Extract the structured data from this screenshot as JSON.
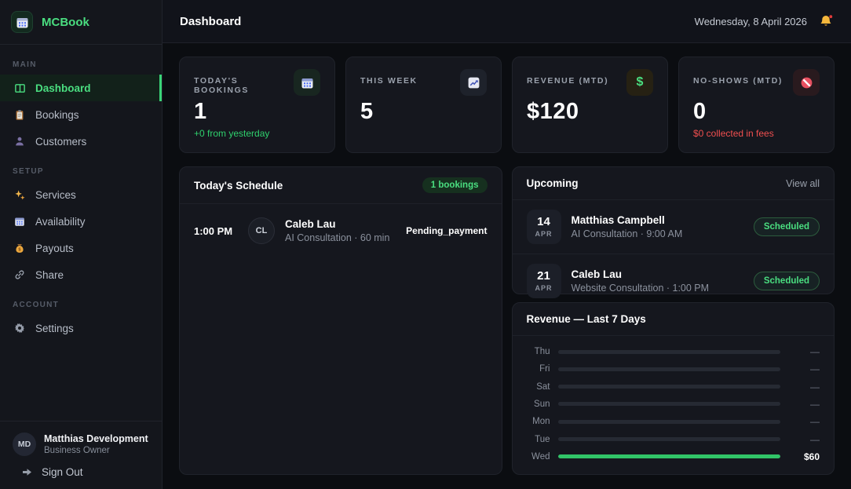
{
  "colors": {
    "accent_green": "#4ade80",
    "bar_green": "#31c468",
    "negative_red": "#f04f4f"
  },
  "app": {
    "name": "MCBook"
  },
  "header": {
    "title": "Dashboard",
    "date": "Wednesday, 8 April 2026",
    "notification_icon": "bell-icon"
  },
  "sidebar": {
    "sections": [
      {
        "label": "MAIN",
        "items": [
          {
            "label": "Dashboard",
            "icon": "dashboard-icon",
            "active": true
          },
          {
            "label": "Bookings",
            "icon": "clipboard-icon",
            "active": false
          },
          {
            "label": "Customers",
            "icon": "person-icon",
            "active": false
          }
        ]
      },
      {
        "label": "SETUP",
        "items": [
          {
            "label": "Services",
            "icon": "sparkles-icon",
            "active": false
          },
          {
            "label": "Availability",
            "icon": "calendar-icon",
            "active": false
          },
          {
            "label": "Payouts",
            "icon": "money-bag-icon",
            "active": false
          },
          {
            "label": "Share",
            "icon": "link-icon",
            "active": false
          }
        ]
      },
      {
        "label": "ACCOUNT",
        "items": [
          {
            "label": "Settings",
            "icon": "gear-icon",
            "active": false
          }
        ]
      }
    ],
    "user": {
      "initials": "MD",
      "name": "Matthias Development",
      "role": "Business Owner",
      "sign_out_label": "Sign Out"
    }
  },
  "stats": [
    {
      "label": "TODAY'S BOOKINGS",
      "value": "1",
      "sub": "+0 from yesterday",
      "icon": "calendar-icon"
    },
    {
      "label": "THIS WEEK",
      "value": "5",
      "sub": "",
      "icon": "chart-up-icon"
    },
    {
      "label": "REVENUE (MTD)",
      "value": "$120",
      "sub": "",
      "icon": "dollar-icon"
    },
    {
      "label": "NO-SHOWS (MTD)",
      "value": "0",
      "sub": "$0 collected in fees",
      "icon": "no-entry-icon"
    }
  ],
  "schedule": {
    "title": "Today's Schedule",
    "badge": "1 bookings",
    "items": [
      {
        "time": "1:00 PM",
        "initials": "CL",
        "name": "Caleb Lau",
        "details": "AI Consultation · 60 min",
        "status": "Pending_payment"
      }
    ]
  },
  "upcoming": {
    "title": "Upcoming",
    "view_all_label": "View all",
    "items": [
      {
        "day": "14",
        "month": "APR",
        "name": "Matthias Campbell",
        "details": "AI Consultation · 9:00 AM",
        "status": "Scheduled"
      },
      {
        "day": "21",
        "month": "APR",
        "name": "Caleb Lau",
        "details": "Website Consultation · 1:00 PM",
        "status": "Scheduled"
      }
    ]
  },
  "chart_data": {
    "type": "bar",
    "orientation": "horizontal",
    "title": "Revenue — Last 7 Days",
    "categories": [
      "Thu",
      "Fri",
      "Sat",
      "Sun",
      "Mon",
      "Tue",
      "Wed"
    ],
    "values": [
      0,
      0,
      0,
      0,
      0,
      0,
      60
    ],
    "value_labels": [
      "—",
      "—",
      "—",
      "—",
      "—",
      "—",
      "$60"
    ],
    "max": 60,
    "unit": "USD ($)",
    "bar_color": "#31c468",
    "track_color": "#262a33",
    "legend": "none",
    "grid": false
  }
}
